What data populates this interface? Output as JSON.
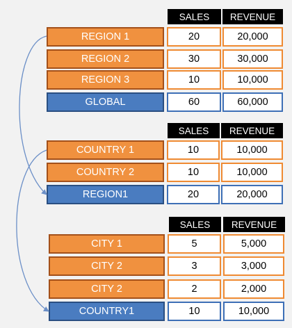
{
  "colors": {
    "background": "#f2f2f2",
    "orange_fill": "#f0913f",
    "orange_border": "#a3501a",
    "blue_fill": "#4a7cc0",
    "blue_border": "#2a4f82",
    "connector": "#6b8fc7"
  },
  "groups": [
    {
      "headers": {
        "sales": "SALES",
        "revenue": "REVENUE"
      },
      "rows": [
        {
          "label": "REGION 1",
          "sales": "20",
          "revenue": "20,000",
          "kind": "orange"
        },
        {
          "label": "REGION 2",
          "sales": "30",
          "revenue": "30,000",
          "kind": "orange"
        },
        {
          "label": "REGION 3",
          "sales": "10",
          "revenue": "10,000",
          "kind": "orange"
        },
        {
          "label": "GLOBAL",
          "sales": "60",
          "revenue": "60,000",
          "kind": "blue"
        }
      ]
    },
    {
      "headers": {
        "sales": "SALES",
        "revenue": "REVENUE"
      },
      "rows": [
        {
          "label": "COUNTRY 1",
          "sales": "10",
          "revenue": "10,000",
          "kind": "orange"
        },
        {
          "label": "COUNTRY 2",
          "sales": "10",
          "revenue": "10,000",
          "kind": "orange"
        },
        {
          "label": "REGION1",
          "sales": "20",
          "revenue": "20,000",
          "kind": "blue"
        }
      ]
    },
    {
      "headers": {
        "sales": "SALES",
        "revenue": "REVENUE"
      },
      "rows": [
        {
          "label": "CITY 1",
          "sales": "5",
          "revenue": "5,000",
          "kind": "orange"
        },
        {
          "label": "CITY 2",
          "sales": "3",
          "revenue": "3,000",
          "kind": "orange"
        },
        {
          "label": "CITY 2",
          "sales": "2",
          "revenue": "2,000",
          "kind": "orange"
        },
        {
          "label": "COUNTRY1",
          "sales": "10",
          "revenue": "10,000",
          "kind": "blue"
        }
      ]
    }
  ],
  "connectors": [
    {
      "from": "REGION 1",
      "to": "REGION1"
    },
    {
      "from": "COUNTRY 1",
      "to": "COUNTRY1"
    }
  ]
}
